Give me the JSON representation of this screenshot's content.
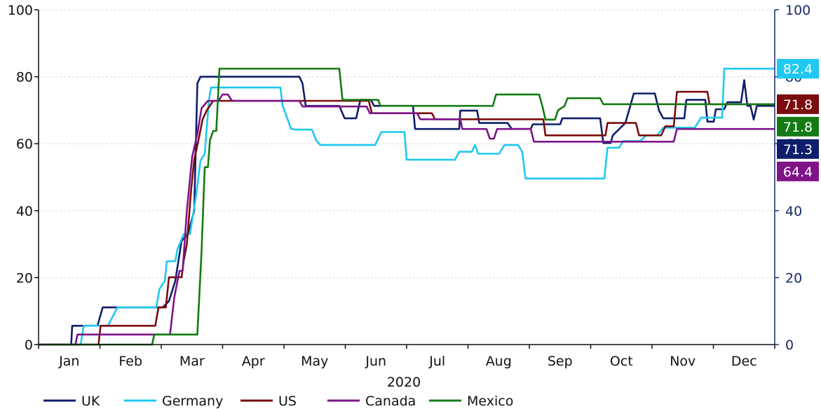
{
  "chart_data": {
    "type": "line",
    "xlabel": "2020",
    "ylim": [
      0,
      100
    ],
    "yticks": [
      0,
      20,
      40,
      60,
      80,
      100
    ],
    "grid": true,
    "legend_placement": "bottom",
    "months": [
      "Jan",
      "Feb",
      "Mar",
      "Apr",
      "May",
      "Jun",
      "Jul",
      "Aug",
      "Sep",
      "Oct",
      "Nov",
      "Dec"
    ],
    "series": [
      {
        "name": "UK",
        "color": "#0f1e6b",
        "end_label": "71.3",
        "points": [
          [
            0,
            0
          ],
          [
            1.55,
            0
          ],
          [
            1.6,
            5.6
          ],
          [
            2.8,
            5.6
          ],
          [
            3.05,
            11.1
          ],
          [
            5.9,
            11.1
          ],
          [
            6.2,
            13
          ],
          [
            6.5,
            19
          ],
          [
            6.8,
            31
          ],
          [
            7.1,
            33
          ],
          [
            7.4,
            40
          ],
          [
            7.55,
            78
          ],
          [
            7.7,
            80
          ],
          [
            12.4,
            80
          ],
          [
            12.55,
            78
          ],
          [
            12.7,
            71.3
          ],
          [
            14.3,
            71.3
          ],
          [
            14.55,
            67.6
          ],
          [
            15.1,
            67.6
          ],
          [
            15.3,
            73.1
          ],
          [
            15.8,
            73.1
          ],
          [
            15.95,
            71.3
          ],
          [
            17.8,
            71.3
          ],
          [
            17.9,
            64.4
          ],
          [
            20.0,
            64.4
          ],
          [
            20.05,
            69.9
          ],
          [
            20.85,
            69.9
          ],
          [
            20.95,
            66.2
          ],
          [
            22.3,
            66.2
          ],
          [
            22.5,
            64.4
          ],
          [
            23.4,
            64.4
          ],
          [
            23.5,
            65.8
          ],
          [
            24.8,
            65.8
          ],
          [
            24.9,
            67.6
          ],
          [
            26.7,
            67.6
          ],
          [
            26.85,
            60.2
          ],
          [
            27.2,
            60.2
          ],
          [
            27.3,
            62.5
          ],
          [
            27.9,
            66.2
          ],
          [
            28.3,
            75
          ],
          [
            29.3,
            75
          ],
          [
            29.5,
            69.9
          ],
          [
            29.7,
            67.6
          ],
          [
            30.7,
            67.6
          ],
          [
            30.8,
            73.1
          ],
          [
            31.7,
            73.1
          ],
          [
            31.8,
            66.6
          ],
          [
            32.1,
            66.6
          ],
          [
            32.2,
            70.3
          ],
          [
            32.6,
            70.3
          ],
          [
            32.75,
            72.4
          ],
          [
            33.4,
            72.4
          ],
          [
            33.55,
            79
          ],
          [
            33.7,
            71.3
          ],
          [
            33.85,
            71.3
          ],
          [
            34.0,
            67.2
          ],
          [
            34.15,
            71.3
          ],
          [
            35,
            71.3
          ]
        ]
      },
      {
        "name": "Germany",
        "color": "#1ec8f0",
        "end_label": "82.4",
        "points": [
          [
            0,
            0
          ],
          [
            2.0,
            0
          ],
          [
            2.15,
            5.6
          ],
          [
            3.3,
            5.6
          ],
          [
            3.75,
            11.1
          ],
          [
            5.6,
            11.1
          ],
          [
            5.75,
            16.6
          ],
          [
            6.0,
            19
          ],
          [
            6.1,
            24.9
          ],
          [
            6.5,
            24.9
          ],
          [
            6.6,
            28.4
          ],
          [
            6.9,
            33
          ],
          [
            7.2,
            33
          ],
          [
            7.5,
            45
          ],
          [
            7.7,
            55
          ],
          [
            7.9,
            57
          ],
          [
            8.1,
            73
          ],
          [
            8.2,
            76.8
          ],
          [
            11.5,
            76.8
          ],
          [
            11.6,
            71.5
          ],
          [
            12.0,
            64.5
          ],
          [
            12.2,
            64.2
          ],
          [
            13.0,
            64.2
          ],
          [
            13.2,
            61
          ],
          [
            13.4,
            59.6
          ],
          [
            16.0,
            59.6
          ],
          [
            16.3,
            63.5
          ],
          [
            17.4,
            63.5
          ],
          [
            17.5,
            55.2
          ],
          [
            19.8,
            55.2
          ],
          [
            20.0,
            57.6
          ],
          [
            20.6,
            57.6
          ],
          [
            20.75,
            59.6
          ],
          [
            20.9,
            57
          ],
          [
            21.9,
            57
          ],
          [
            22.15,
            59.6
          ],
          [
            22.8,
            59.6
          ],
          [
            23.0,
            57.5
          ],
          [
            23.15,
            49.6
          ],
          [
            26.9,
            49.6
          ],
          [
            27.05,
            58.8
          ],
          [
            27.6,
            58.8
          ],
          [
            27.8,
            60.8
          ],
          [
            28.6,
            60.8
          ],
          [
            28.9,
            62.5
          ],
          [
            29.4,
            62.5
          ],
          [
            29.7,
            64.8
          ],
          [
            31.2,
            64.8
          ],
          [
            31.5,
            67.8
          ],
          [
            32.5,
            67.8
          ],
          [
            32.6,
            82.4
          ],
          [
            35,
            82.4
          ]
        ]
      },
      {
        "name": "US",
        "color": "#7a0c0c",
        "end_label": "71.8",
        "points": [
          [
            0,
            0
          ],
          [
            2.85,
            0
          ],
          [
            2.95,
            5.6
          ],
          [
            5.55,
            5.6
          ],
          [
            5.7,
            11.1
          ],
          [
            6.05,
            11.1
          ],
          [
            6.2,
            20.1
          ],
          [
            6.8,
            20.1
          ],
          [
            6.9,
            25
          ],
          [
            7.05,
            30
          ],
          [
            7.25,
            46
          ],
          [
            7.4,
            55.2
          ],
          [
            7.6,
            61
          ],
          [
            7.8,
            67.3
          ],
          [
            8.0,
            70
          ],
          [
            8.3,
            72.8
          ],
          [
            9.5,
            72.8
          ],
          [
            10.5,
            72.8
          ],
          [
            12.5,
            72.8
          ],
          [
            14.5,
            72.8
          ],
          [
            15.7,
            72.8
          ],
          [
            15.85,
            69.1
          ],
          [
            18.7,
            69.1
          ],
          [
            18.85,
            67.3
          ],
          [
            21.0,
            67.3
          ],
          [
            24.0,
            67.3
          ],
          [
            24.1,
            62.5
          ],
          [
            26.95,
            62.5
          ],
          [
            27.05,
            66.2
          ],
          [
            28.4,
            66.2
          ],
          [
            28.55,
            62.5
          ],
          [
            29.6,
            62.5
          ],
          [
            29.8,
            65.2
          ],
          [
            30.2,
            65.2
          ],
          [
            30.35,
            75.5
          ],
          [
            31.8,
            75.5
          ],
          [
            31.9,
            71.8
          ],
          [
            35,
            71.8
          ]
        ]
      },
      {
        "name": "Canada",
        "color": "#7e1488",
        "end_label": "64.4",
        "points": [
          [
            0,
            0
          ],
          [
            1.75,
            0
          ],
          [
            1.85,
            3
          ],
          [
            6.25,
            3
          ],
          [
            6.45,
            14
          ],
          [
            6.7,
            22
          ],
          [
            6.85,
            22
          ],
          [
            7.05,
            40
          ],
          [
            7.3,
            56
          ],
          [
            7.55,
            63
          ],
          [
            7.75,
            70.6
          ],
          [
            8.05,
            72.8
          ],
          [
            8.55,
            72.8
          ],
          [
            8.75,
            74.7
          ],
          [
            9.0,
            74.7
          ],
          [
            9.2,
            72.8
          ],
          [
            12.4,
            72.8
          ],
          [
            12.55,
            71.1
          ],
          [
            15.6,
            71.1
          ],
          [
            15.75,
            69.1
          ],
          [
            18.0,
            69.1
          ],
          [
            18.15,
            67.3
          ],
          [
            20.05,
            67.3
          ],
          [
            20.15,
            64.4
          ],
          [
            21.3,
            64.4
          ],
          [
            21.45,
            61.5
          ],
          [
            21.65,
            61.5
          ],
          [
            21.8,
            64.4
          ],
          [
            23.4,
            64.4
          ],
          [
            23.55,
            60.6
          ],
          [
            30.2,
            60.6
          ],
          [
            30.35,
            64.4
          ],
          [
            35,
            64.4
          ]
        ]
      },
      {
        "name": "Mexico",
        "color": "#147a14",
        "end_label": "71.8",
        "points": [
          [
            0,
            0
          ],
          [
            5.4,
            0
          ],
          [
            5.5,
            3
          ],
          [
            7.55,
            3
          ],
          [
            7.75,
            28
          ],
          [
            7.9,
            53
          ],
          [
            8.05,
            53
          ],
          [
            8.15,
            61
          ],
          [
            8.3,
            63.8
          ],
          [
            8.45,
            63.8
          ],
          [
            8.6,
            82.4
          ],
          [
            14.3,
            82.4
          ],
          [
            14.45,
            73.1
          ],
          [
            16.15,
            73.1
          ],
          [
            16.25,
            71.3
          ],
          [
            21.6,
            71.3
          ],
          [
            21.75,
            74.7
          ],
          [
            23.8,
            74.7
          ],
          [
            23.95,
            71.3
          ],
          [
            24.1,
            67.2
          ],
          [
            24.55,
            67.2
          ],
          [
            24.7,
            70
          ],
          [
            25.0,
            71.2
          ],
          [
            25.15,
            73.6
          ],
          [
            26.7,
            73.6
          ],
          [
            26.85,
            71.8
          ],
          [
            35,
            71.8
          ]
        ]
      }
    ]
  }
}
